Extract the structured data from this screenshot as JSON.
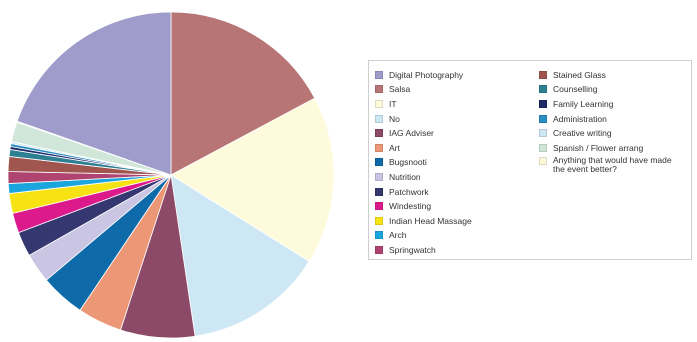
{
  "chart_data": {
    "type": "pie",
    "title": "",
    "legend_position": "right",
    "slices": [
      {
        "label": "Digital Photography",
        "value": 20.0,
        "color": "#9f9ccc"
      },
      {
        "label": "Salsa",
        "value": 17.5,
        "color": "#b87575"
      },
      {
        "label": "IT",
        "value": 17.0,
        "color": "#fdfbdc"
      },
      {
        "label": "No",
        "value": 14.0,
        "color": "#cde7f5"
      },
      {
        "label": "IAG Adviser",
        "value": 7.5,
        "color": "#8c4a68"
      },
      {
        "label": "Art",
        "value": 4.5,
        "color": "#ec9775"
      },
      {
        "label": "Bugsnooti",
        "value": 4.5,
        "color": "#0e6aa9"
      },
      {
        "label": "Nutrition",
        "value": 3.0,
        "color": "#c9c5e2"
      },
      {
        "label": "Patchwork",
        "value": 2.5,
        "color": "#353770"
      },
      {
        "label": "Windesting",
        "value": 2.0,
        "color": "#dc1a8c"
      },
      {
        "label": "Indian Head Massage",
        "value": 2.0,
        "color": "#f7e313"
      },
      {
        "label": "Arch",
        "value": 1.0,
        "color": "#1aa6dd"
      },
      {
        "label": "Springwatch",
        "value": 1.2,
        "color": "#b04470"
      },
      {
        "label": "Stained Glass",
        "value": 1.5,
        "color": "#a0564f"
      },
      {
        "label": "Counselling",
        "value": 0.7,
        "color": "#2f7f93"
      },
      {
        "label": "Family Learning",
        "value": 0.3,
        "color": "#1d2a6a"
      },
      {
        "label": "Administration",
        "value": 0.3,
        "color": "#2a8fc0"
      },
      {
        "label": "Creative writing",
        "value": 0.2,
        "color": "#cfe6f4"
      },
      {
        "label": "Spanish / Flower arrang",
        "value": 2.0,
        "color": "#cfe6d8"
      },
      {
        "label": "Anything that would have made the event better?",
        "value": 0.1,
        "color": "#fcf8d8"
      }
    ]
  }
}
